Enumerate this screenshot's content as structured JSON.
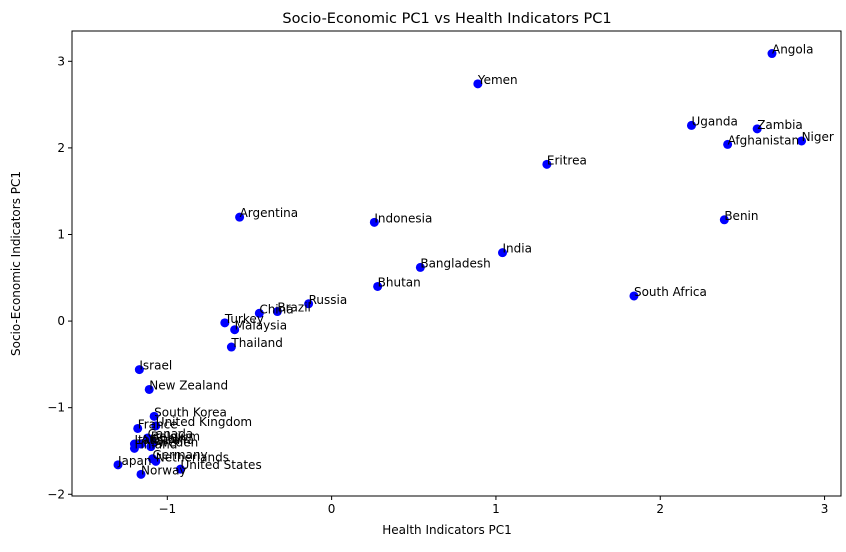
{
  "chart_data": {
    "type": "scatter",
    "title": "Socio-Economic PC1 vs Health Indicators PC1",
    "xlabel": "Health Indicators PC1",
    "ylabel": "Socio-Economic Indicators PC1",
    "xlim": [
      -1.58,
      3.1
    ],
    "ylim": [
      -2.02,
      3.35
    ],
    "xticks": [
      -1,
      0,
      1,
      2,
      3
    ],
    "yticks": [
      -2,
      -1,
      0,
      1,
      2,
      3
    ],
    "xtick_labels": [
      "−1",
      "0",
      "1",
      "2",
      "3"
    ],
    "ytick_labels": [
      "−2",
      "−1",
      "0",
      "1",
      "2",
      "3"
    ],
    "grid": false,
    "marker_color": "#0000ff",
    "points": [
      {
        "label": "Angola",
        "x": 2.68,
        "y": 3.09
      },
      {
        "label": "Yemen",
        "x": 0.89,
        "y": 2.74
      },
      {
        "label": "Uganda",
        "x": 2.19,
        "y": 2.26
      },
      {
        "label": "Zambia",
        "x": 2.59,
        "y": 2.22
      },
      {
        "label": "Afghanistan",
        "x": 2.41,
        "y": 2.04
      },
      {
        "label": "Niger",
        "x": 2.86,
        "y": 2.08
      },
      {
        "label": "Eritrea",
        "x": 1.31,
        "y": 1.81
      },
      {
        "label": "Argentina",
        "x": -0.56,
        "y": 1.2
      },
      {
        "label": "Indonesia",
        "x": 0.26,
        "y": 1.14
      },
      {
        "label": "Benin",
        "x": 2.39,
        "y": 1.17
      },
      {
        "label": "India",
        "x": 1.04,
        "y": 0.79
      },
      {
        "label": "Bangladesh",
        "x": 0.54,
        "y": 0.62
      },
      {
        "label": "Bhutan",
        "x": 0.28,
        "y": 0.4
      },
      {
        "label": "South Africa",
        "x": 1.84,
        "y": 0.29
      },
      {
        "label": "Russia",
        "x": -0.14,
        "y": 0.2
      },
      {
        "label": "Brazil",
        "x": -0.33,
        "y": 0.11
      },
      {
        "label": "China",
        "x": -0.44,
        "y": 0.09
      },
      {
        "label": "Turkey",
        "x": -0.65,
        "y": -0.02
      },
      {
        "label": "Malaysia",
        "x": -0.59,
        "y": -0.1
      },
      {
        "label": "Thailand",
        "x": -0.61,
        "y": -0.3
      },
      {
        "label": "Israel",
        "x": -1.17,
        "y": -0.56
      },
      {
        "label": "New Zealand",
        "x": -1.11,
        "y": -0.79
      },
      {
        "label": "South Korea",
        "x": -1.08,
        "y": -1.1
      },
      {
        "label": "United Kingdom",
        "x": -1.07,
        "y": -1.21
      },
      {
        "label": "France",
        "x": -1.18,
        "y": -1.24
      },
      {
        "label": "Canada",
        "x": -1.12,
        "y": -1.35
      },
      {
        "label": "Belgium",
        "x": -1.1,
        "y": -1.38
      },
      {
        "label": "Spain",
        "x": -1.09,
        "y": -1.4
      },
      {
        "label": "Australia",
        "x": -1.16,
        "y": -1.42
      },
      {
        "label": "Italy",
        "x": -1.2,
        "y": -1.42
      },
      {
        "label": "Sweden",
        "x": -1.1,
        "y": -1.45
      },
      {
        "label": "Finland",
        "x": -1.2,
        "y": -1.47
      },
      {
        "label": "Germany",
        "x": -1.09,
        "y": -1.59
      },
      {
        "label": "Netherlands",
        "x": -1.07,
        "y": -1.62
      },
      {
        "label": "Japan",
        "x": -1.3,
        "y": -1.66
      },
      {
        "label": "United States",
        "x": -0.92,
        "y": -1.71
      },
      {
        "label": "Norway",
        "x": -1.16,
        "y": -1.77
      }
    ]
  }
}
